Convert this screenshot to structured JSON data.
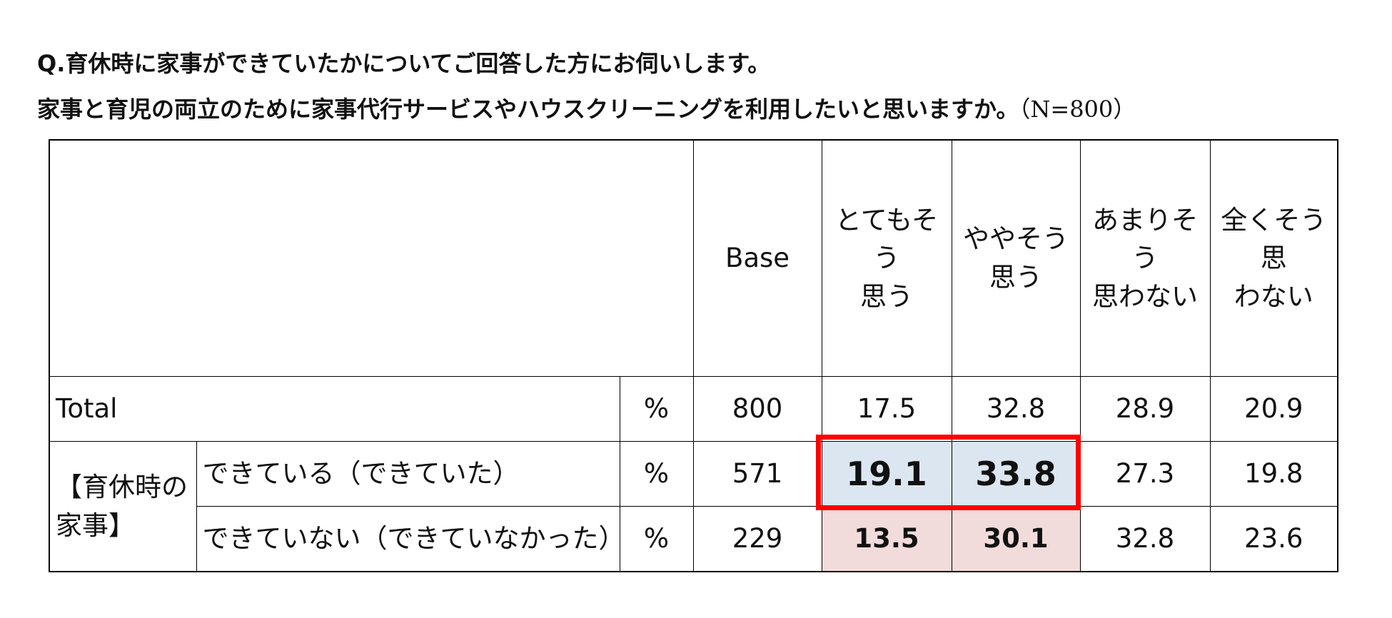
{
  "title": {
    "line1": "Q.育休時に家事ができていたかについてご回答した方にお伺いします。",
    "line2": "家事と育児の両立のために家事代行サービスやハウスクリーニングを利用したいと思いますか。",
    "n": "（N=800）"
  },
  "table": {
    "header": [
      [
        "Base"
      ],
      [
        "とてもそう",
        "思う"
      ],
      [
        "ややそう",
        "思う"
      ],
      [
        "あまりそう",
        "思わない"
      ],
      [
        "全くそう思",
        "わない"
      ]
    ],
    "total": {
      "label": "Total",
      "unit": "%",
      "base": 800,
      "values": [
        17.5,
        32.8,
        28.9,
        20.9
      ]
    },
    "group": {
      "label": [
        "【育休時の",
        "家事】"
      ],
      "rows": [
        {
          "label": "できている（できていた）",
          "unit": "%",
          "base": 571,
          "values": [
            19.1,
            33.8,
            27.3,
            19.8
          ]
        },
        {
          "label": "できていない（できていなかった）",
          "unit": "%",
          "base": 229,
          "values": [
            13.5,
            30.1,
            32.8,
            23.6
          ]
        }
      ]
    }
  }
}
